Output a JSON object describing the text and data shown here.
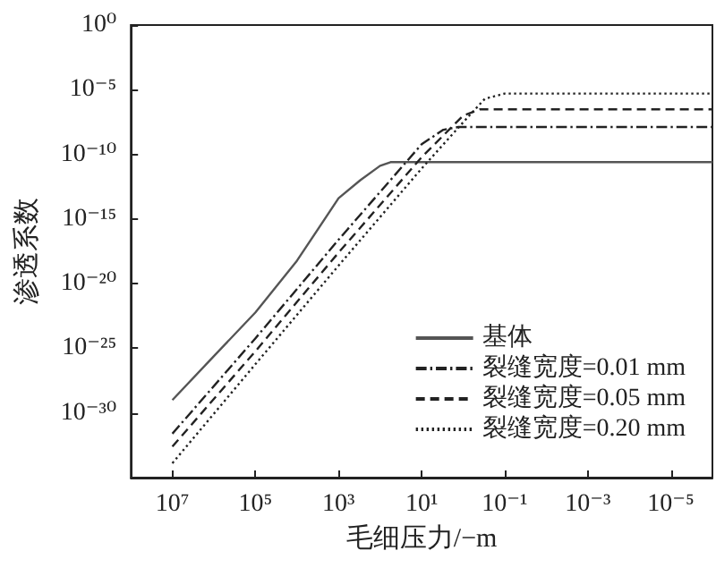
{
  "chart_data": {
    "type": "line",
    "xlabel": "毛细压力/−m",
    "ylabel": "渗透系数",
    "log": "xy",
    "grid": false,
    "legend": "bottom right",
    "marker": "none",
    "xlim": [
      100000000.0,
      1e-06
    ],
    "ylim": [
      1e-35,
      1
    ],
    "xticks": [
      {
        "value": 10000000.0,
        "label": "10⁷"
      },
      {
        "value": 100000.0,
        "label": "10⁵"
      },
      {
        "value": 1000.0,
        "label": "10³"
      },
      {
        "value": 10.0,
        "label": "10¹"
      },
      {
        "value": 0.1,
        "label": "10⁻¹"
      },
      {
        "value": 0.001,
        "label": "10⁻³"
      },
      {
        "value": 1e-05,
        "label": "10⁻⁵"
      }
    ],
    "yticks": [
      {
        "value": 1,
        "label": "10⁰"
      },
      {
        "value": 1e-05,
        "label": "10⁻⁵"
      },
      {
        "value": 1e-10,
        "label": "10⁻¹⁰"
      },
      {
        "value": 1e-15,
        "label": "10⁻¹⁵"
      },
      {
        "value": 1e-20,
        "label": "10⁻²⁰"
      },
      {
        "value": 1e-25,
        "label": "10⁻²⁵"
      },
      {
        "value": 1e-30,
        "label": "10⁻³⁰"
      }
    ],
    "series": [
      {
        "name": "基体",
        "color": "#555555",
        "line_style": "solid",
        "x": [
          10000000.0,
          1000000.0,
          100000.0,
          10000.0,
          1000.0,
          300.0,
          100.0,
          56,
          1e-06
        ],
        "values": [
          1e-29,
          2.5e-26,
          6e-23,
          6e-19,
          4e-14,
          1e-12,
          1.3e-11,
          2.5e-11,
          2.5e-11
        ]
      },
      {
        "name": "裂缝宽度=0.01 mm",
        "color": "#222222",
        "line_style": "dashdot",
        "x": [
          10000000.0,
          100000.0,
          1000.0,
          10.0,
          3,
          1.3,
          1e-06
        ],
        "values": [
          2.5e-32,
          6e-25,
          2.5e-17,
          6e-10,
          8e-09,
          1.3e-08,
          1.3e-08
        ]
      },
      {
        "name": "裂缝宽度=0.05 mm",
        "color": "#222222",
        "line_style": "dashed",
        "x": [
          10000000.0,
          100000.0,
          1000.0,
          10.0,
          1,
          0.4,
          1e-06
        ],
        "values": [
          2.5e-33,
          6e-26,
          2.5e-18,
          6e-11,
          1e-07,
          3e-07,
          3e-07
        ]
      },
      {
        "name": "裂缝宽度=0.20 mm",
        "color": "#222222",
        "line_style": "dotted",
        "x": [
          10000000.0,
          100000.0,
          1000.0,
          10.0,
          1,
          0.3,
          0.1,
          1e-06
        ],
        "values": [
          1.3e-34,
          6e-27,
          2.5e-19,
          8e-12,
          3e-08,
          2e-06,
          5e-06,
          5e-06
        ]
      }
    ]
  }
}
